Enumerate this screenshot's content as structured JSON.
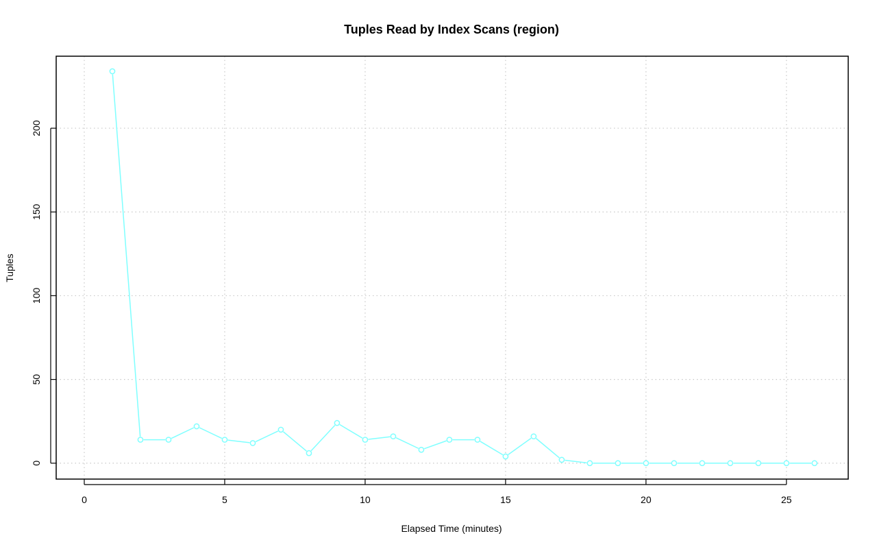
{
  "chart_data": {
    "type": "line",
    "title": "Tuples Read by Index Scans (region)",
    "xlabel": "Elapsed Time (minutes)",
    "ylabel": "Tuples",
    "xlim": [
      -1,
      27.2
    ],
    "ylim": [
      -9.5,
      243
    ],
    "xticks": [
      0,
      5,
      10,
      15,
      20,
      25
    ],
    "yticks": [
      0,
      50,
      100,
      150,
      200
    ],
    "grid": true,
    "legend": "none",
    "series": [
      {
        "color": "#7fffff",
        "x": [
          1,
          2,
          3,
          4,
          5,
          6,
          7,
          8,
          9,
          10,
          11,
          12,
          13,
          14,
          15,
          16,
          17,
          18,
          19,
          20,
          21,
          22,
          23,
          24,
          25,
          26
        ],
        "y": [
          234,
          14,
          14,
          22,
          14,
          12,
          20,
          6,
          24,
          14,
          16,
          8,
          14,
          14,
          4,
          16,
          2,
          0,
          0,
          0,
          0,
          0,
          0,
          0,
          0,
          0
        ]
      }
    ]
  }
}
